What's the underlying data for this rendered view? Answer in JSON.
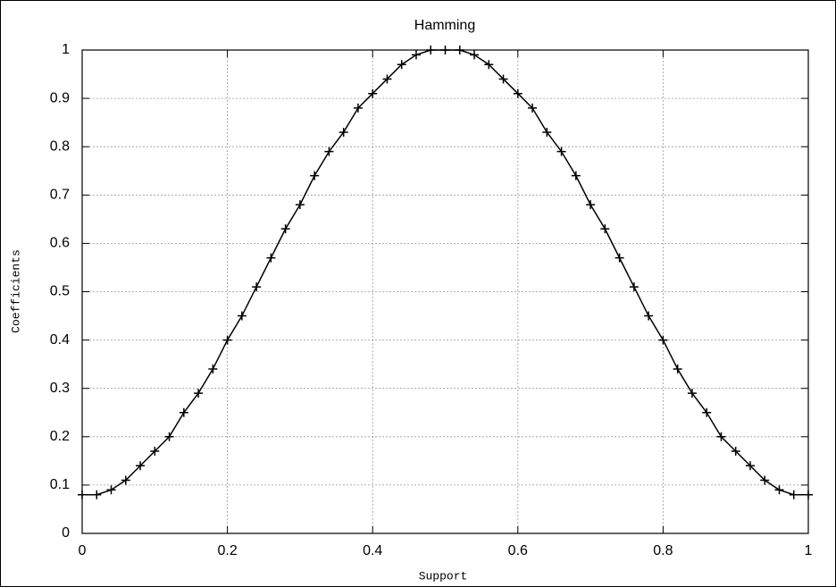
{
  "chart_data": {
    "type": "line",
    "title": "Hamming",
    "x_label": "Support",
    "y_label": "Coefficients",
    "x": [
      0,
      0.02,
      0.04,
      0.06,
      0.08,
      0.1,
      0.12,
      0.14,
      0.16,
      0.18,
      0.2,
      0.22,
      0.24,
      0.26,
      0.28,
      0.3,
      0.32,
      0.34,
      0.36,
      0.38,
      0.4,
      0.42,
      0.44,
      0.46,
      0.48,
      0.5,
      0.52,
      0.54,
      0.56,
      0.58,
      0.6,
      0.62,
      0.64,
      0.66,
      0.68,
      0.7,
      0.72,
      0.74,
      0.76,
      0.78,
      0.8,
      0.82,
      0.84,
      0.86,
      0.88,
      0.9,
      0.92,
      0.94,
      0.96,
      0.98,
      1
    ],
    "series": [
      {
        "color": "#000000",
        "marker": "plus",
        "values": [
          0.08,
          0.08,
          0.09,
          0.11,
          0.14,
          0.17,
          0.2,
          0.25,
          0.29,
          0.34,
          0.4,
          0.45,
          0.51,
          0.57,
          0.63,
          0.68,
          0.74,
          0.79,
          0.83,
          0.88,
          0.91,
          0.94,
          0.97,
          0.99,
          1,
          1,
          1,
          0.99,
          0.97,
          0.94,
          0.91,
          0.88,
          0.83,
          0.79,
          0.74,
          0.68,
          0.63,
          0.57,
          0.51,
          0.45,
          0.4,
          0.34,
          0.29,
          0.25,
          0.2,
          0.17,
          0.14,
          0.11,
          0.09,
          0.08,
          0.08
        ]
      }
    ],
    "xlim": [
      0,
      1
    ],
    "xticks": [
      0,
      0.2,
      0.4,
      0.6,
      0.8,
      1
    ],
    "ylim": [
      0,
      1
    ],
    "yticks": [
      0,
      0.1,
      0.2,
      0.3,
      0.4,
      0.5,
      0.6,
      0.7,
      0.8,
      0.9,
      1
    ],
    "grid": true
  }
}
